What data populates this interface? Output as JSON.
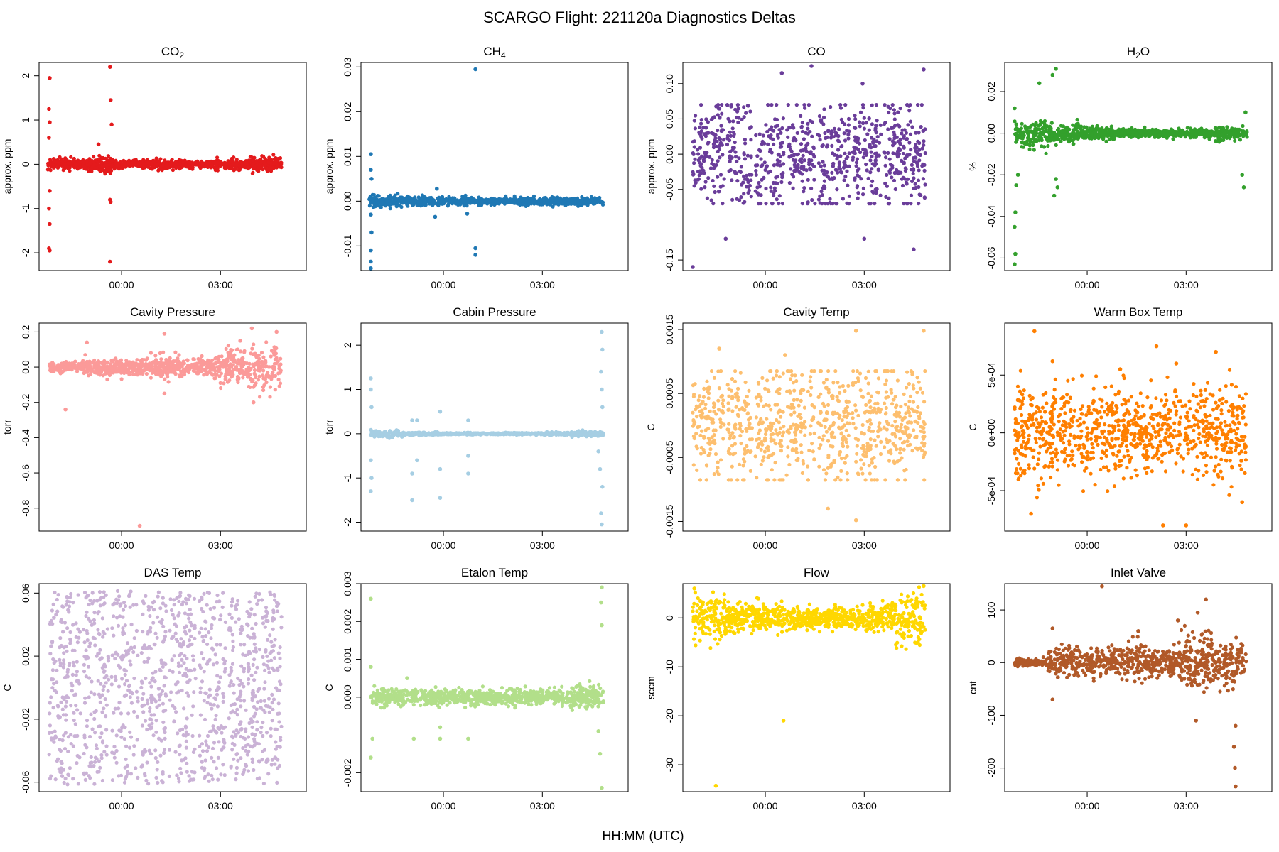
{
  "figure": {
    "title": "SCARGO Flight: 221120a  Diagnostics Deltas",
    "xlabel": "HH:MM (UTC)"
  },
  "chart_data": [
    {
      "type": "scatter",
      "title": "CO",
      "title_sub": "2",
      "ylabel": "approx. ppm",
      "color": "#E41A1C",
      "xlim": [
        -2.5,
        5.6
      ],
      "ylim": [
        -2.4,
        2.3
      ],
      "xticks": [
        {
          "v": 0,
          "label": "00:00"
        },
        {
          "v": 3,
          "label": "03:00"
        }
      ],
      "yticks": [
        {
          "v": -2,
          "label": "-2"
        },
        {
          "v": -1,
          "label": "-1"
        },
        {
          "v": 0,
          "label": "0"
        },
        {
          "v": 1,
          "label": "1"
        },
        {
          "v": 2,
          "label": "2"
        }
      ],
      "band": {
        "x0": -2.25,
        "x1": 4.85,
        "amp": [
          0.12,
          0.18,
          0.1,
          0.1,
          0.08,
          0.12,
          0.16
        ]
      },
      "outliers": [
        [
          -2.18,
          1.95
        ],
        [
          -2.2,
          1.25
        ],
        [
          -2.18,
          0.95
        ],
        [
          -2.2,
          0.6
        ],
        [
          -2.18,
          -0.6
        ],
        [
          -2.2,
          -1.0
        ],
        [
          -2.18,
          -1.35
        ],
        [
          -2.2,
          -1.9
        ],
        [
          -2.18,
          -1.95
        ],
        [
          -0.35,
          2.2
        ],
        [
          -0.33,
          1.45
        ],
        [
          -0.3,
          0.9
        ],
        [
          -0.35,
          -0.8
        ],
        [
          -0.33,
          -0.85
        ],
        [
          -0.35,
          -2.2
        ],
        [
          -0.7,
          0.45
        ]
      ]
    },
    {
      "type": "scatter",
      "title": "CH",
      "title_sub": "4",
      "ylabel": "approx. ppm",
      "color": "#1F78B4",
      "xlim": [
        -2.5,
        5.6
      ],
      "ylim": [
        -0.0155,
        0.031
      ],
      "xticks": [
        {
          "v": 0,
          "label": "00:00"
        },
        {
          "v": 3,
          "label": "03:00"
        }
      ],
      "yticks": [
        {
          "v": -0.01,
          "label": "-0.01"
        },
        {
          "v": 0,
          "label": "0.00"
        },
        {
          "v": 0.01,
          "label": "0.01"
        },
        {
          "v": 0.02,
          "label": "0.02"
        },
        {
          "v": 0.03,
          "label": "0.03"
        }
      ],
      "band": {
        "x0": -2.25,
        "x1": 4.85,
        "amp": [
          0.0012,
          0.001,
          0.0009,
          0.0008,
          0.0008,
          0.0009,
          0.0009
        ]
      },
      "outliers": [
        [
          -2.2,
          0.0105
        ],
        [
          -2.2,
          0.007
        ],
        [
          -2.18,
          0.005
        ],
        [
          -2.2,
          -0.003
        ],
        [
          -2.18,
          -0.007
        ],
        [
          -2.2,
          -0.011
        ],
        [
          -2.2,
          -0.0135
        ],
        [
          -2.2,
          -0.015
        ],
        [
          0.97,
          0.0295
        ],
        [
          0.97,
          -0.0105
        ],
        [
          0.97,
          -0.012
        ],
        [
          0.72,
          -0.0028
        ],
        [
          -0.2,
          0.0028
        ],
        [
          -0.25,
          -0.0035
        ]
      ]
    },
    {
      "type": "scatter",
      "title": "CO",
      "title_sub": "",
      "ylabel": "approx. ppm",
      "color": "#6A3D9A",
      "xlim": [
        -2.5,
        5.6
      ],
      "ylim": [
        -0.165,
        0.13
      ],
      "xticks": [
        {
          "v": 0,
          "label": "00:00"
        },
        {
          "v": 3,
          "label": "03:00"
        }
      ],
      "yticks": [
        {
          "v": -0.15,
          "label": "-0.15"
        },
        {
          "v": -0.05,
          "label": "-0.05"
        },
        {
          "v": 0,
          "label": "0.00"
        },
        {
          "v": 0.05,
          "label": "0.05"
        },
        {
          "v": 0.1,
          "label": "0.10"
        }
      ],
      "band": {
        "x0": -2.2,
        "x1": 4.85,
        "amp": [
          0.07,
          0.07,
          0.07,
          0.07,
          0.07,
          0.07,
          0.07
        ]
      },
      "gaps": [
        -1.2,
        -0.35,
        0.6,
        1.55,
        2.6,
        3.55
      ],
      "outliers": [
        [
          -2.2,
          -0.16
        ],
        [
          1.4,
          0.125
        ],
        [
          0.5,
          0.115
        ],
        [
          4.8,
          0.12
        ],
        [
          3.0,
          -0.12
        ],
        [
          4.5,
          -0.135
        ],
        [
          2.95,
          0.1
        ],
        [
          -1.2,
          -0.12
        ]
      ]
    },
    {
      "type": "scatter",
      "title": "H",
      "title_sub": "2",
      "title_post": "O",
      "ylabel": "%",
      "color": "#33A02C",
      "xlim": [
        -2.5,
        5.6
      ],
      "ylim": [
        -0.066,
        0.034
      ],
      "xticks": [
        {
          "v": 0,
          "label": "00:00"
        },
        {
          "v": 3,
          "label": "03:00"
        }
      ],
      "yticks": [
        {
          "v": -0.06,
          "label": "-0.06"
        },
        {
          "v": -0.04,
          "label": "-0.04"
        },
        {
          "v": -0.02,
          "label": "-0.02"
        },
        {
          "v": 0,
          "label": "0.00"
        },
        {
          "v": 0.02,
          "label": "0.02"
        }
      ],
      "band": {
        "x0": -2.2,
        "x1": 4.85,
        "amp": [
          0.007,
          0.005,
          0.003,
          0.002,
          0.002,
          0.002,
          0.003
        ]
      },
      "outliers": [
        [
          -2.2,
          -0.063
        ],
        [
          -2.18,
          -0.058
        ],
        [
          -2.2,
          -0.045
        ],
        [
          -2.18,
          -0.038
        ],
        [
          -2.15,
          -0.025
        ],
        [
          -2.1,
          -0.02
        ],
        [
          -2.2,
          0.012
        ],
        [
          -0.95,
          0.031
        ],
        [
          -1.05,
          0.028
        ],
        [
          -1.45,
          0.024
        ],
        [
          -1.0,
          -0.03
        ],
        [
          -0.9,
          -0.026
        ],
        [
          -0.95,
          -0.022
        ],
        [
          4.75,
          -0.026
        ],
        [
          4.7,
          -0.02
        ],
        [
          4.8,
          0.01
        ]
      ]
    },
    {
      "type": "scatter",
      "title": "Cavity Pressure",
      "ylabel": "torr",
      "color": "#FB9A99",
      "xlim": [
        -2.5,
        5.6
      ],
      "ylim": [
        -0.93,
        0.25
      ],
      "xticks": [
        {
          "v": 0,
          "label": "00:00"
        },
        {
          "v": 3,
          "label": "03:00"
        }
      ],
      "yticks": [
        {
          "v": -0.8,
          "label": "-0.8"
        },
        {
          "v": -0.6,
          "label": "-0.6"
        },
        {
          "v": -0.4,
          "label": "-0.4"
        },
        {
          "v": -0.2,
          "label": "-0.2"
        },
        {
          "v": 0,
          "label": "0.0"
        },
        {
          "v": 0.2,
          "label": "0.2"
        }
      ],
      "band": {
        "x0": -2.2,
        "x1": 4.85,
        "amp": [
          0.03,
          0.05,
          0.05,
          0.06,
          0.05,
          0.1,
          0.12
        ]
      },
      "outliers": [
        [
          0.55,
          -0.9
        ],
        [
          -1.7,
          -0.24
        ],
        [
          1.3,
          0.19
        ],
        [
          3.95,
          0.22
        ],
        [
          4.7,
          0.2
        ],
        [
          3.6,
          0.15
        ],
        [
          -1.05,
          0.14
        ],
        [
          1.3,
          -0.15
        ],
        [
          4.0,
          -0.2
        ]
      ]
    },
    {
      "type": "scatter",
      "title": "Cabin Pressure",
      "ylabel": "torr",
      "color": "#A6CEE3",
      "xlim": [
        -2.5,
        5.6
      ],
      "ylim": [
        -2.2,
        2.5
      ],
      "xticks": [
        {
          "v": 0,
          "label": "00:00"
        },
        {
          "v": 3,
          "label": "03:00"
        }
      ],
      "yticks": [
        {
          "v": -2,
          "label": "-2"
        },
        {
          "v": -1,
          "label": "-1"
        },
        {
          "v": 0,
          "label": "0"
        },
        {
          "v": 1,
          "label": "1"
        },
        {
          "v": 2,
          "label": "2"
        }
      ],
      "band": {
        "x0": -2.2,
        "x1": 4.85,
        "amp": [
          0.08,
          0.03,
          0.02,
          0.02,
          0.02,
          0.03,
          0.06
        ]
      },
      "outliers": [
        [
          -2.2,
          1.25
        ],
        [
          -2.2,
          1.0
        ],
        [
          -2.18,
          0.6
        ],
        [
          -2.2,
          -1.3
        ],
        [
          -2.18,
          -1.0
        ],
        [
          -2.2,
          -0.6
        ],
        [
          -0.95,
          0.3
        ],
        [
          -0.95,
          -1.5
        ],
        [
          -0.95,
          -0.9
        ],
        [
          -0.8,
          0.3
        ],
        [
          -0.8,
          -0.6
        ],
        [
          -0.1,
          0.5
        ],
        [
          -0.1,
          -1.45
        ],
        [
          -0.1,
          -0.8
        ],
        [
          0.75,
          0.3
        ],
        [
          0.75,
          -0.9
        ],
        [
          0.75,
          -0.5
        ],
        [
          4.8,
          2.3
        ],
        [
          4.82,
          1.9
        ],
        [
          4.78,
          1.4
        ],
        [
          4.8,
          1.0
        ],
        [
          4.82,
          0.6
        ],
        [
          4.8,
          -2.05
        ],
        [
          4.78,
          -1.8
        ],
        [
          4.82,
          -1.2
        ],
        [
          4.75,
          -0.8
        ],
        [
          4.7,
          -0.4
        ]
      ]
    },
    {
      "type": "scatter",
      "title": "Cavity Temp",
      "ylabel": "C",
      "color": "#FDBF6F",
      "xlim": [
        -2.5,
        5.6
      ],
      "ylim": [
        -0.00165,
        0.0016
      ],
      "xticks": [
        {
          "v": 0,
          "label": "00:00"
        },
        {
          "v": 3,
          "label": "03:00"
        }
      ],
      "yticks": [
        {
          "v": -0.0015,
          "label": "-0.0015"
        },
        {
          "v": -0.0005,
          "label": "-0.0005"
        },
        {
          "v": 0.0005,
          "label": "0.0005"
        },
        {
          "v": 0.0015,
          "label": "0.0015"
        }
      ],
      "band": {
        "x0": -2.2,
        "x1": 4.85,
        "amp": [
          0.00085,
          0.00085,
          0.00085,
          0.00085,
          0.00085,
          0.00085,
          0.00085
        ]
      },
      "gaps": [
        -1.2,
        -0.35,
        0.6,
        1.55,
        2.6,
        3.55
      ],
      "outliers": [
        [
          2.75,
          0.00148
        ],
        [
          4.8,
          0.00148
        ],
        [
          2.75,
          -0.00148
        ],
        [
          -1.4,
          0.0012
        ],
        [
          0.6,
          0.0011
        ],
        [
          1.9,
          -0.0013
        ]
      ]
    },
    {
      "type": "scatter",
      "title": "Warm Box Temp",
      "ylabel": "C",
      "color": "#FF7F00",
      "xlim": [
        -2.5,
        5.6
      ],
      "ylim": [
        -0.00085,
        0.00095
      ],
      "xticks": [
        {
          "v": 0,
          "label": "00:00"
        },
        {
          "v": 3,
          "label": "03:00"
        }
      ],
      "yticks": [
        {
          "v": -0.0005,
          "label": "-5e-04"
        },
        {
          "v": 0,
          "label": "0e+00"
        },
        {
          "v": 0.0005,
          "label": "5e-04"
        }
      ],
      "band": {
        "x0": -2.2,
        "x1": 4.85,
        "amp": [
          0.0004,
          0.00038,
          0.00036,
          0.00036,
          0.00036,
          0.00036,
          0.0004
        ]
      },
      "outliers": [
        [
          -1.6,
          0.00088
        ],
        [
          2.1,
          0.00075
        ],
        [
          3.9,
          0.0007
        ],
        [
          -1.05,
          0.00062
        ],
        [
          1.0,
          0.00055
        ],
        [
          2.7,
          0.0006
        ],
        [
          2.3,
          -0.0008
        ],
        [
          3.0,
          -0.0008
        ],
        [
          -1.7,
          -0.0007
        ],
        [
          4.7,
          -0.0006
        ]
      ]
    },
    {
      "type": "scatter",
      "title": "DAS Temp",
      "ylabel": "C",
      "color": "#CAB2D6",
      "xlim": [
        -2.5,
        5.6
      ],
      "ylim": [
        -0.066,
        0.066
      ],
      "xticks": [
        {
          "v": 0,
          "label": "00:00"
        },
        {
          "v": 3,
          "label": "03:00"
        }
      ],
      "yticks": [
        {
          "v": -0.06,
          "label": "-0.06"
        },
        {
          "v": -0.02,
          "label": "-0.02"
        },
        {
          "v": 0.02,
          "label": "0.02"
        },
        {
          "v": 0.06,
          "label": "0.06"
        }
      ],
      "band": {
        "x0": -2.2,
        "x1": 4.85,
        "amp": [
          0.0615,
          0.0615,
          0.0615,
          0.0615,
          0.0615,
          0.0615,
          0.0615
        ]
      },
      "gaps": [
        -1.2,
        -0.35,
        0.55,
        1.4,
        2.3,
        3.2
      ],
      "outliers": []
    },
    {
      "type": "scatter",
      "title": "Etalon Temp",
      "ylabel": "C",
      "color": "#B2DF8A",
      "xlim": [
        -2.5,
        5.6
      ],
      "ylim": [
        -0.0025,
        0.003
      ],
      "xticks": [
        {
          "v": 0,
          "label": "00:00"
        },
        {
          "v": 3,
          "label": "03:00"
        }
      ],
      "yticks": [
        {
          "v": -0.002,
          "label": "-0.002"
        },
        {
          "v": 0,
          "label": "0.000"
        },
        {
          "v": 0.001,
          "label": "0.001"
        },
        {
          "v": 0.002,
          "label": "0.002"
        },
        {
          "v": 0.003,
          "label": "0.003"
        }
      ],
      "band": {
        "x0": -2.2,
        "x1": 4.85,
        "amp": [
          0.00025,
          0.00022,
          0.00022,
          0.0002,
          0.0002,
          0.00022,
          0.0003
        ]
      },
      "outliers": [
        [
          -2.2,
          0.0026
        ],
        [
          -2.2,
          -0.0016
        ],
        [
          -2.15,
          -0.0011
        ],
        [
          -2.2,
          0.0008
        ],
        [
          -0.9,
          -0.0011
        ],
        [
          -0.1,
          -0.0011
        ],
        [
          -0.1,
          -0.0008
        ],
        [
          0.75,
          -0.0011
        ],
        [
          4.8,
          0.0029
        ],
        [
          4.78,
          0.0025
        ],
        [
          4.8,
          0.0019
        ],
        [
          4.8,
          -0.0024
        ],
        [
          4.75,
          -0.0015
        ],
        [
          4.7,
          -0.0009
        ],
        [
          -1.1,
          0.0005
        ]
      ]
    },
    {
      "type": "scatter",
      "title": "Flow",
      "ylabel": "sccm",
      "color": "#FFD700",
      "xlim": [
        -2.5,
        5.6
      ],
      "ylim": [
        -35.5,
        7
      ],
      "xticks": [
        {
          "v": 0,
          "label": "00:00"
        },
        {
          "v": 3,
          "label": "03:00"
        }
      ],
      "yticks": [
        {
          "v": -30,
          "label": "-30"
        },
        {
          "v": -20,
          "label": "-20"
        },
        {
          "v": -10,
          "label": "-10"
        },
        {
          "v": 0,
          "label": "0"
        }
      ],
      "band": {
        "x0": -2.2,
        "x1": 4.85,
        "amp": [
          4.5,
          3.0,
          2.5,
          2.0,
          2.0,
          2.5,
          5.5
        ]
      },
      "outliers": [
        [
          -1.5,
          -34.3
        ],
        [
          0.55,
          -21
        ],
        [
          -2.15,
          6
        ],
        [
          4.8,
          6.5
        ]
      ]
    },
    {
      "type": "scatter",
      "title": "Inlet Valve",
      "ylabel": "cnt",
      "color": "#B15928",
      "xlim": [
        -2.5,
        5.6
      ],
      "ylim": [
        -245,
        150
      ],
      "xticks": [
        {
          "v": 0,
          "label": "00:00"
        },
        {
          "v": 3,
          "label": "03:00"
        }
      ],
      "yticks": [
        {
          "v": -200,
          "label": "-200"
        },
        {
          "v": -100,
          "label": "-100"
        },
        {
          "v": 0,
          "label": "0"
        },
        {
          "v": 100,
          "label": "100"
        }
      ],
      "band": {
        "x0": -2.2,
        "x1": 4.85,
        "amp": [
          8,
          25,
          25,
          35,
          30,
          55,
          40
        ]
      },
      "outliers": [
        [
          0.45,
          145
        ],
        [
          3.35,
          95
        ],
        [
          3.6,
          120
        ],
        [
          3.3,
          -110
        ],
        [
          4.5,
          -235
        ],
        [
          4.48,
          -200
        ],
        [
          4.45,
          -160
        ],
        [
          4.5,
          -120
        ],
        [
          -1.05,
          65
        ],
        [
          -1.05,
          -70
        ],
        [
          1.55,
          60
        ],
        [
          2.75,
          80
        ]
      ]
    }
  ]
}
